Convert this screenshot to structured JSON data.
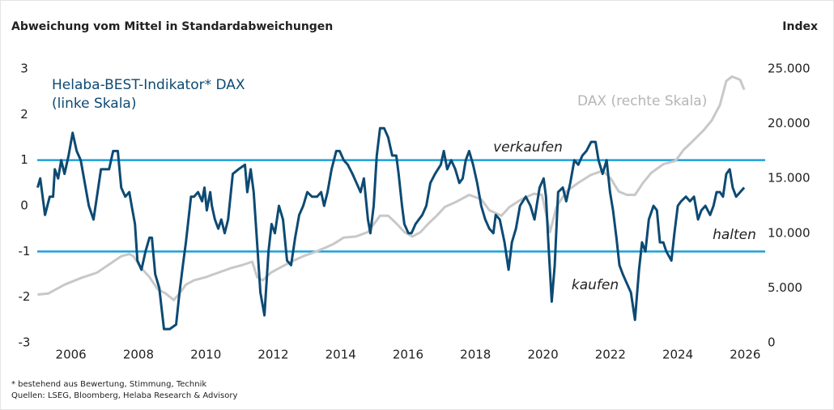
{
  "chart_data": {
    "type": "line",
    "title": "Abweichung vom Mittel in Standardabweichungen",
    "y2_label": "Index",
    "footnotes": [
      "* bestehend aus Bewertung, Stimmung, Technik",
      "Quellen: LSEG, Bloomberg, Helaba Research & Advisory"
    ],
    "xlim": [
      2005,
      2026.4
    ],
    "xticks": [
      2006,
      2008,
      2010,
      2012,
      2014,
      2016,
      2018,
      2020,
      2022,
      2024,
      2026
    ],
    "ylim": [
      -3,
      3
    ],
    "yticks": [
      -3,
      -2,
      -1,
      0,
      1,
      2,
      3
    ],
    "y2lim": [
      0,
      25000
    ],
    "y2ticks": [
      0,
      {
        "value": 5000,
        "label": "5.000"
      },
      {
        "value": 10000,
        "label": "10.000"
      },
      {
        "value": 15000,
        "label": "15.000"
      },
      {
        "value": 20000,
        "label": "20.000"
      },
      {
        "value": 25000,
        "label": "25.000"
      }
    ],
    "reference_lines": {
      "values": [
        1,
        -1
      ],
      "color": "#1ba1dc"
    },
    "annotations": [
      {
        "text": "verkaufen",
        "color": "#e30613"
      },
      {
        "text": "halten",
        "color": "#f5c400"
      },
      {
        "text": "kaufen",
        "color": "#5aa02c"
      }
    ],
    "series": [
      {
        "name": "DAX (rechte Skala)",
        "color": "#c8c8c8",
        "axis": "y2",
        "x": [
          2005.01,
          2005.33,
          2005.81,
          2006.29,
          2006.77,
          2007.25,
          2007.49,
          2007.73,
          2007.85,
          2008.09,
          2008.33,
          2008.57,
          2008.81,
          2009.05,
          2009.22,
          2009.41,
          2009.65,
          2010.01,
          2010.37,
          2010.73,
          2011.09,
          2011.38,
          2011.52,
          2011.69,
          2011.93,
          2012.17,
          2012.53,
          2012.89,
          2013.25,
          2013.49,
          2013.78,
          2014.09,
          2014.45,
          2014.81,
          2015.17,
          2015.41,
          2015.65,
          2015.89,
          2016.13,
          2016.37,
          2016.61,
          2016.85,
          2017.09,
          2017.45,
          2017.81,
          2018.17,
          2018.41,
          2018.77,
          2019.01,
          2019.37,
          2019.73,
          2019.97,
          2020.21,
          2020.4,
          2020.69,
          2021.05,
          2021.41,
          2021.77,
          2022.01,
          2022.25,
          2022.49,
          2022.73,
          2022.97,
          2023.21,
          2023.57,
          2023.93,
          2024.17,
          2024.41,
          2024.77,
          2025.01,
          2025.25,
          2025.44,
          2025.61,
          2025.85,
          2025.97
        ],
        "values": [
          4400,
          4500,
          5300,
          5900,
          6400,
          7400,
          7900,
          8100,
          7900,
          6800,
          6000,
          4900,
          4500,
          3900,
          4500,
          5300,
          5700,
          6000,
          6400,
          6800,
          7100,
          7400,
          6000,
          5700,
          6400,
          6800,
          7400,
          7900,
          8300,
          8600,
          9000,
          9600,
          9700,
          10100,
          11600,
          11600,
          10900,
          10100,
          9700,
          10100,
          10900,
          11600,
          12400,
          12900,
          13500,
          13100,
          12100,
          11600,
          12400,
          13100,
          13600,
          13500,
          10100,
          12400,
          13800,
          14600,
          15300,
          15700,
          15000,
          13800,
          13500,
          13500,
          14600,
          15500,
          16300,
          16600,
          17600,
          18300,
          19400,
          20300,
          21700,
          23900,
          24300,
          24000,
          23100
        ]
      },
      {
        "name": "Helaba-BEST-Indikator* DAX (linke Skala)",
        "color": "#0d4a73",
        "x": [
          2005.01,
          2005.09,
          2005.23,
          2005.37,
          2005.47,
          2005.52,
          2005.62,
          2005.71,
          2005.81,
          2005.93,
          2006.05,
          2006.17,
          2006.29,
          2006.41,
          2006.53,
          2006.67,
          2006.77,
          2006.89,
          2007.01,
          2007.13,
          2007.25,
          2007.39,
          2007.49,
          2007.61,
          2007.73,
          2007.8,
          2007.9,
          2007.97,
          2008.09,
          2008.21,
          2008.33,
          2008.4,
          2008.5,
          2008.62,
          2008.76,
          2008.93,
          2009.12,
          2009.22,
          2009.32,
          2009.41,
          2009.56,
          2009.65,
          2009.77,
          2009.89,
          2009.96,
          2010.03,
          2010.13,
          2010.18,
          2010.27,
          2010.37,
          2010.46,
          2010.56,
          2010.66,
          2010.8,
          2010.97,
          2011.16,
          2011.23,
          2011.33,
          2011.42,
          2011.52,
          2011.62,
          2011.74,
          2011.86,
          2011.95,
          2012.05,
          2012.17,
          2012.29,
          2012.41,
          2012.53,
          2012.65,
          2012.77,
          2012.89,
          2013.01,
          2013.15,
          2013.3,
          2013.42,
          2013.51,
          2013.61,
          2013.73,
          2013.87,
          2013.97,
          2014.09,
          2014.21,
          2014.35,
          2014.47,
          2014.59,
          2014.69,
          2014.81,
          2014.88,
          2014.98,
          2015.07,
          2015.17,
          2015.29,
          2015.41,
          2015.53,
          2015.65,
          2015.72,
          2015.82,
          2015.89,
          2016.01,
          2016.1,
          2016.22,
          2016.32,
          2016.42,
          2016.54,
          2016.66,
          2016.8,
          2016.97,
          2017.06,
          2017.16,
          2017.28,
          2017.4,
          2017.52,
          2017.62,
          2017.71,
          2017.81,
          2017.93,
          2018.05,
          2018.17,
          2018.29,
          2018.41,
          2018.53,
          2018.6,
          2018.72,
          2018.86,
          2018.98,
          2019.08,
          2019.2,
          2019.32,
          2019.49,
          2019.63,
          2019.75,
          2019.9,
          2020.02,
          2020.09,
          2020.16,
          2020.26,
          2020.35,
          2020.45,
          2020.59,
          2020.69,
          2020.81,
          2020.93,
          2021.05,
          2021.17,
          2021.29,
          2021.43,
          2021.56,
          2021.65,
          2021.77,
          2021.89,
          2021.99,
          2022.08,
          2022.18,
          2022.27,
          2022.37,
          2022.49,
          2022.61,
          2022.73,
          2022.85,
          2022.94,
          2023.04,
          2023.14,
          2023.28,
          2023.38,
          2023.47,
          2023.57,
          2023.66,
          2023.81,
          2023.9,
          2024.0,
          2024.1,
          2024.24,
          2024.36,
          2024.48,
          2024.6,
          2024.7,
          2024.82,
          2024.96,
          2025.06,
          2025.15,
          2025.25,
          2025.34,
          2025.44,
          2025.54,
          2025.63,
          2025.73,
          2025.85,
          2025.97
        ],
        "values": [
          0.4,
          0.6,
          -0.2,
          0.2,
          0.2,
          0.8,
          0.6,
          1.0,
          0.7,
          1.1,
          1.6,
          1.2,
          1.0,
          0.5,
          0.0,
          -0.3,
          0.2,
          0.8,
          0.8,
          0.8,
          1.2,
          1.2,
          0.4,
          0.2,
          0.3,
          0.0,
          -0.4,
          -1.2,
          -1.4,
          -1.0,
          -0.7,
          -0.7,
          -1.5,
          -1.8,
          -2.7,
          -2.7,
          -2.6,
          -1.9,
          -1.3,
          -0.8,
          0.2,
          0.2,
          0.3,
          0.1,
          0.4,
          -0.1,
          0.3,
          0.0,
          -0.3,
          -0.5,
          -0.3,
          -0.6,
          -0.3,
          0.7,
          0.8,
          0.9,
          0.3,
          0.8,
          0.3,
          -0.8,
          -1.9,
          -2.4,
          -1.0,
          -0.4,
          -0.6,
          0.0,
          -0.3,
          -1.2,
          -1.3,
          -0.7,
          -0.2,
          0.0,
          0.3,
          0.2,
          0.2,
          0.3,
          0.0,
          0.3,
          0.8,
          1.2,
          1.2,
          1.0,
          0.9,
          0.7,
          0.5,
          0.3,
          0.6,
          -0.3,
          -0.6,
          0.0,
          1.1,
          1.7,
          1.7,
          1.5,
          1.1,
          1.1,
          0.7,
          0.0,
          -0.4,
          -0.6,
          -0.6,
          -0.4,
          -0.3,
          -0.2,
          0.0,
          0.5,
          0.7,
          0.9,
          1.2,
          0.8,
          1.0,
          0.8,
          0.5,
          0.6,
          1.0,
          1.2,
          0.9,
          0.5,
          0.0,
          -0.3,
          -0.5,
          -0.6,
          -0.2,
          -0.3,
          -0.8,
          -1.4,
          -0.8,
          -0.5,
          0.0,
          0.2,
          0.0,
          -0.3,
          0.4,
          0.6,
          0.2,
          -0.8,
          -2.1,
          -1.3,
          0.3,
          0.4,
          0.1,
          0.5,
          1.0,
          0.9,
          1.1,
          1.2,
          1.4,
          1.4,
          1.0,
          0.7,
          1.0,
          0.3,
          -0.1,
          -0.7,
          -1.3,
          -1.5,
          -1.7,
          -1.9,
          -2.5,
          -1.4,
          -0.8,
          -1.0,
          -0.3,
          0.0,
          -0.1,
          -0.8,
          -0.8,
          -1.0,
          -1.2,
          -0.6,
          0.0,
          0.1,
          0.2,
          0.1,
          0.2,
          -0.3,
          -0.1,
          0.0,
          -0.2,
          0.0,
          0.3,
          0.3,
          0.2,
          0.7,
          0.8,
          0.4,
          0.2,
          0.3,
          0.4
        ]
      }
    ]
  }
}
